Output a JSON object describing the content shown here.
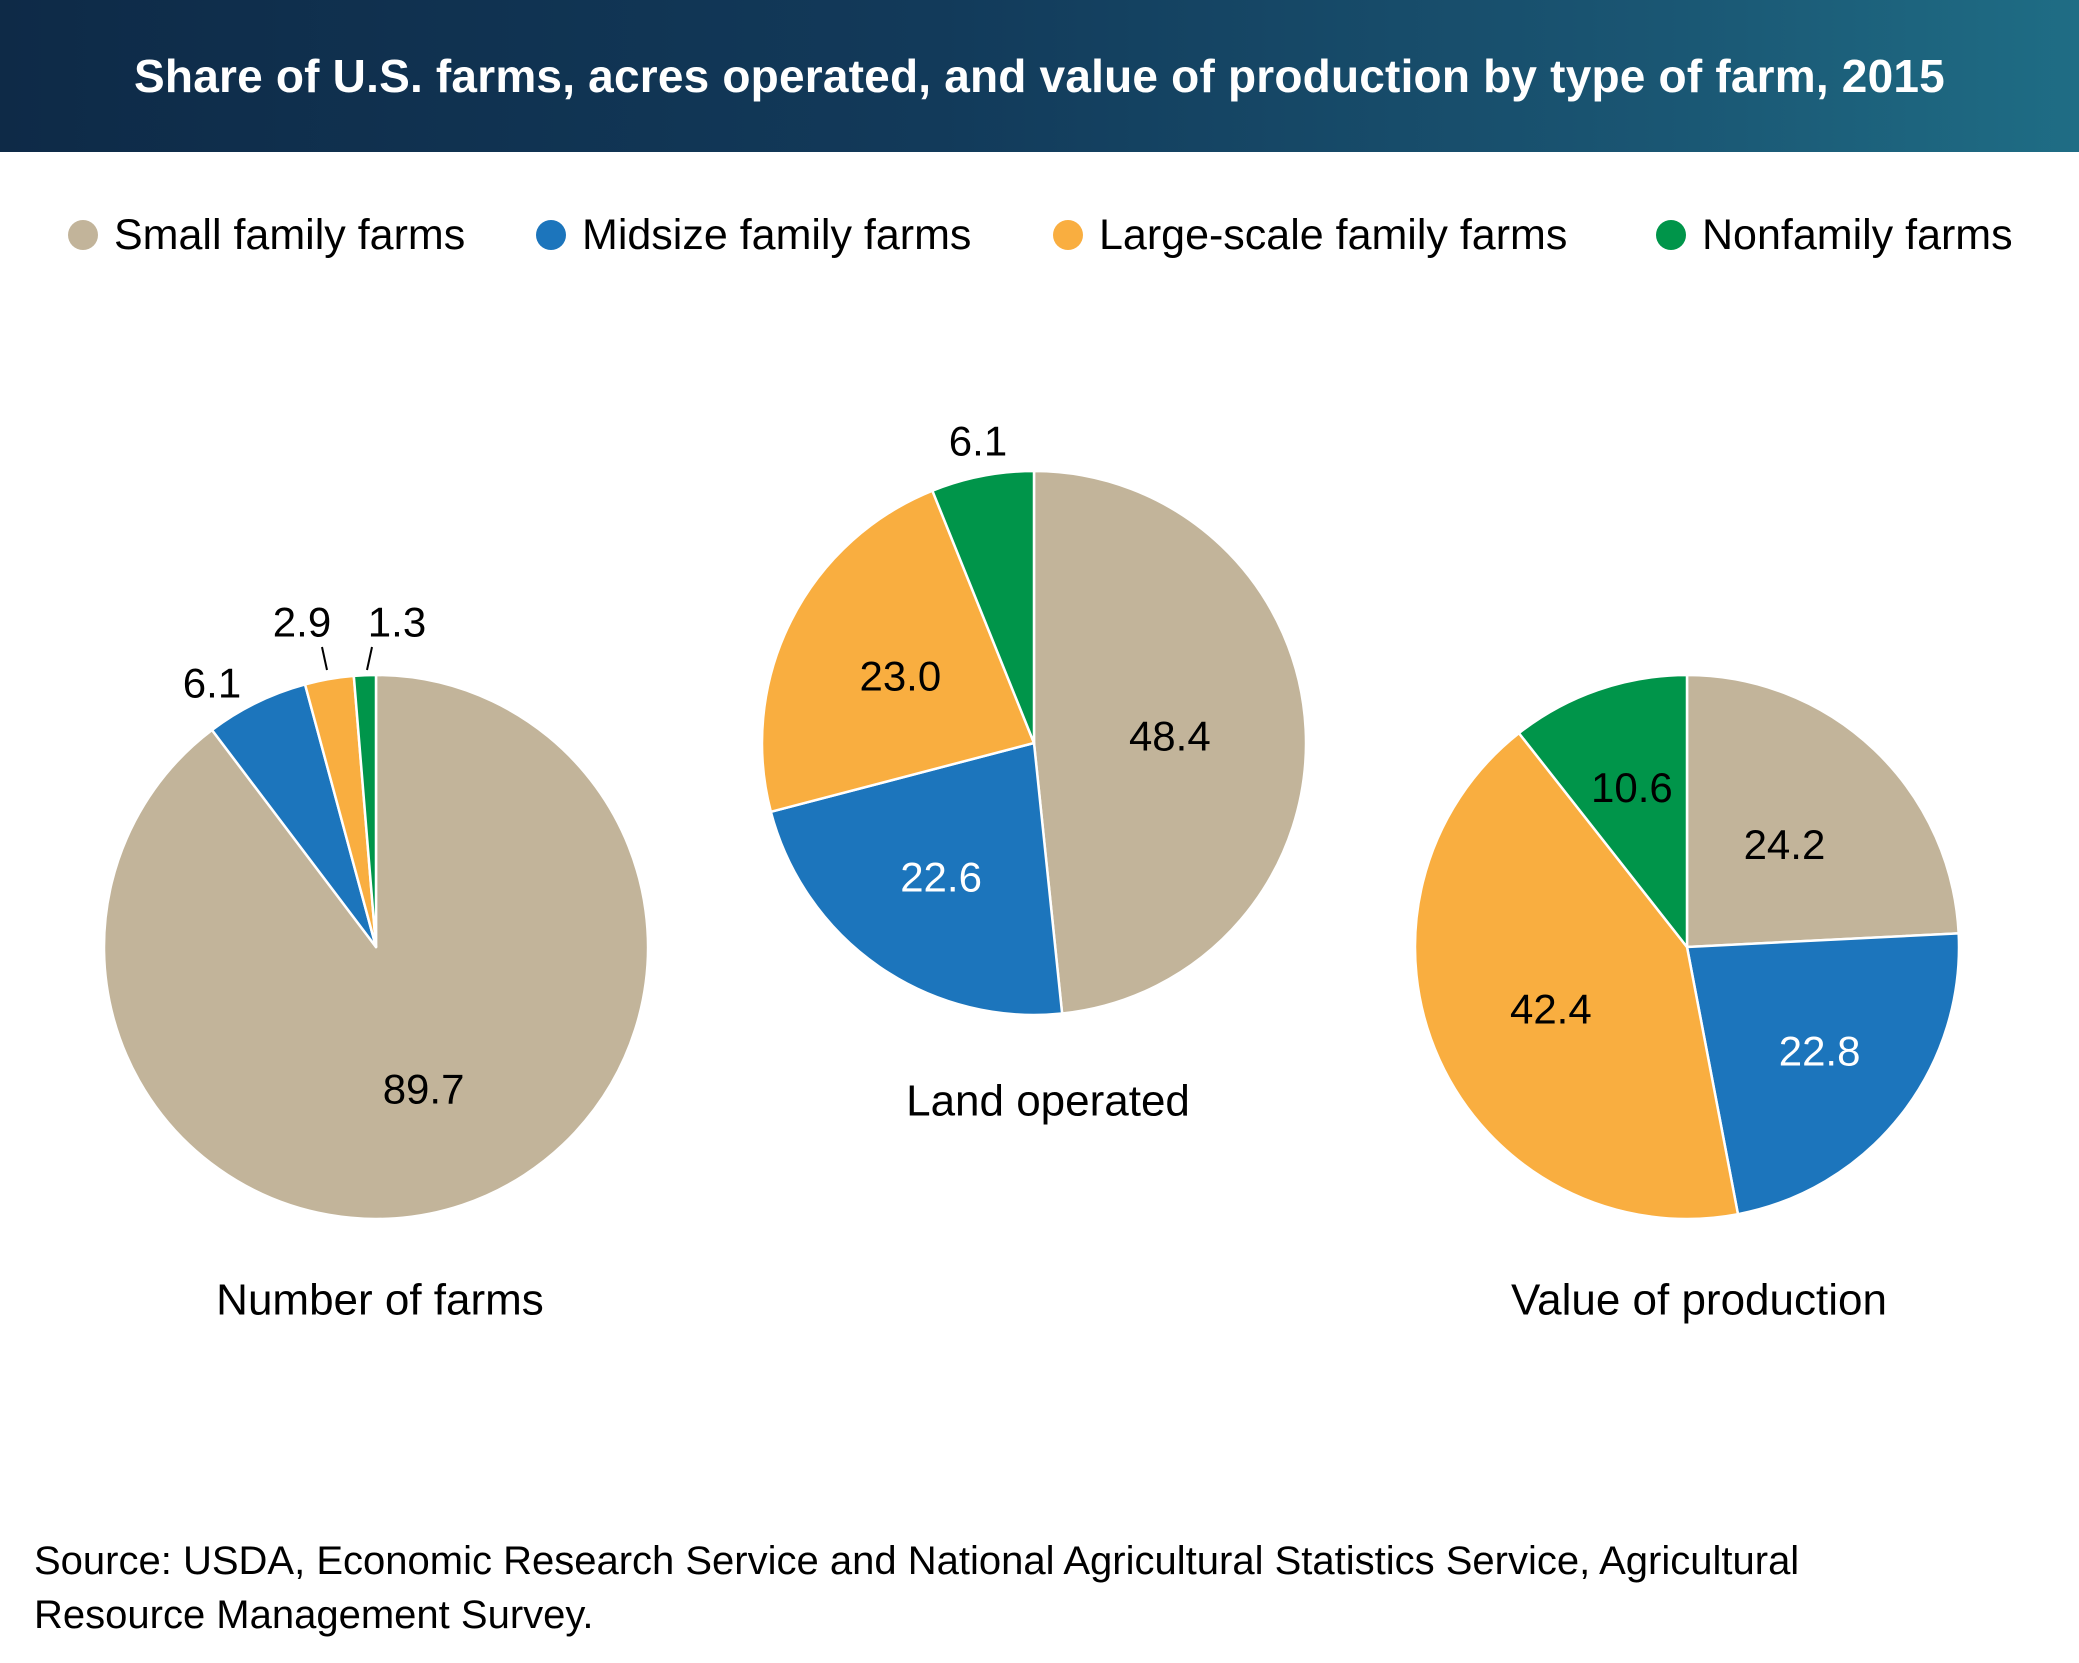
{
  "title": "Share of U.S. farms, acres operated, and value of production by type of farm, 2015",
  "source_line1": "Source: USDA, Economic Research Service and National Agricultural Statistics Service, Agricultural",
  "source_line2": "Resource Management Survey.",
  "legend": [
    {
      "label": "Small family farms",
      "color": "#c2b49a"
    },
    {
      "label": "Midsize family farms",
      "color": "#1c75bc"
    },
    {
      "label": "Large-scale family farms",
      "color": "#f9ae40"
    },
    {
      "label": "Nonfamily farms",
      "color": "#00954a"
    }
  ],
  "chart_data": [
    {
      "type": "pie",
      "label": "Number of farms",
      "categories": [
        "Small family farms",
        "Midsize family farms",
        "Large-scale family farms",
        "Nonfamily farms"
      ],
      "values": [
        89.7,
        6.1,
        2.9,
        1.3
      ],
      "value_labels": [
        "89.7",
        "6.1",
        "2.9",
        "1.3"
      ]
    },
    {
      "type": "pie",
      "label": "Land operated",
      "categories": [
        "Small family farms",
        "Midsize family farms",
        "Large-scale family farms",
        "Nonfamily farms"
      ],
      "values": [
        48.4,
        22.6,
        23.0,
        6.1
      ],
      "value_labels": [
        "48.4",
        "22.6",
        "23.0",
        "6.1"
      ]
    },
    {
      "type": "pie",
      "label": "Value of production",
      "categories": [
        "Small family farms",
        "Midsize family farms",
        "Large-scale family farms",
        "Nonfamily farms"
      ],
      "values": [
        24.2,
        22.8,
        42.4,
        10.6
      ],
      "value_labels": [
        "24.2",
        "22.8",
        "42.4",
        "10.6"
      ]
    }
  ]
}
